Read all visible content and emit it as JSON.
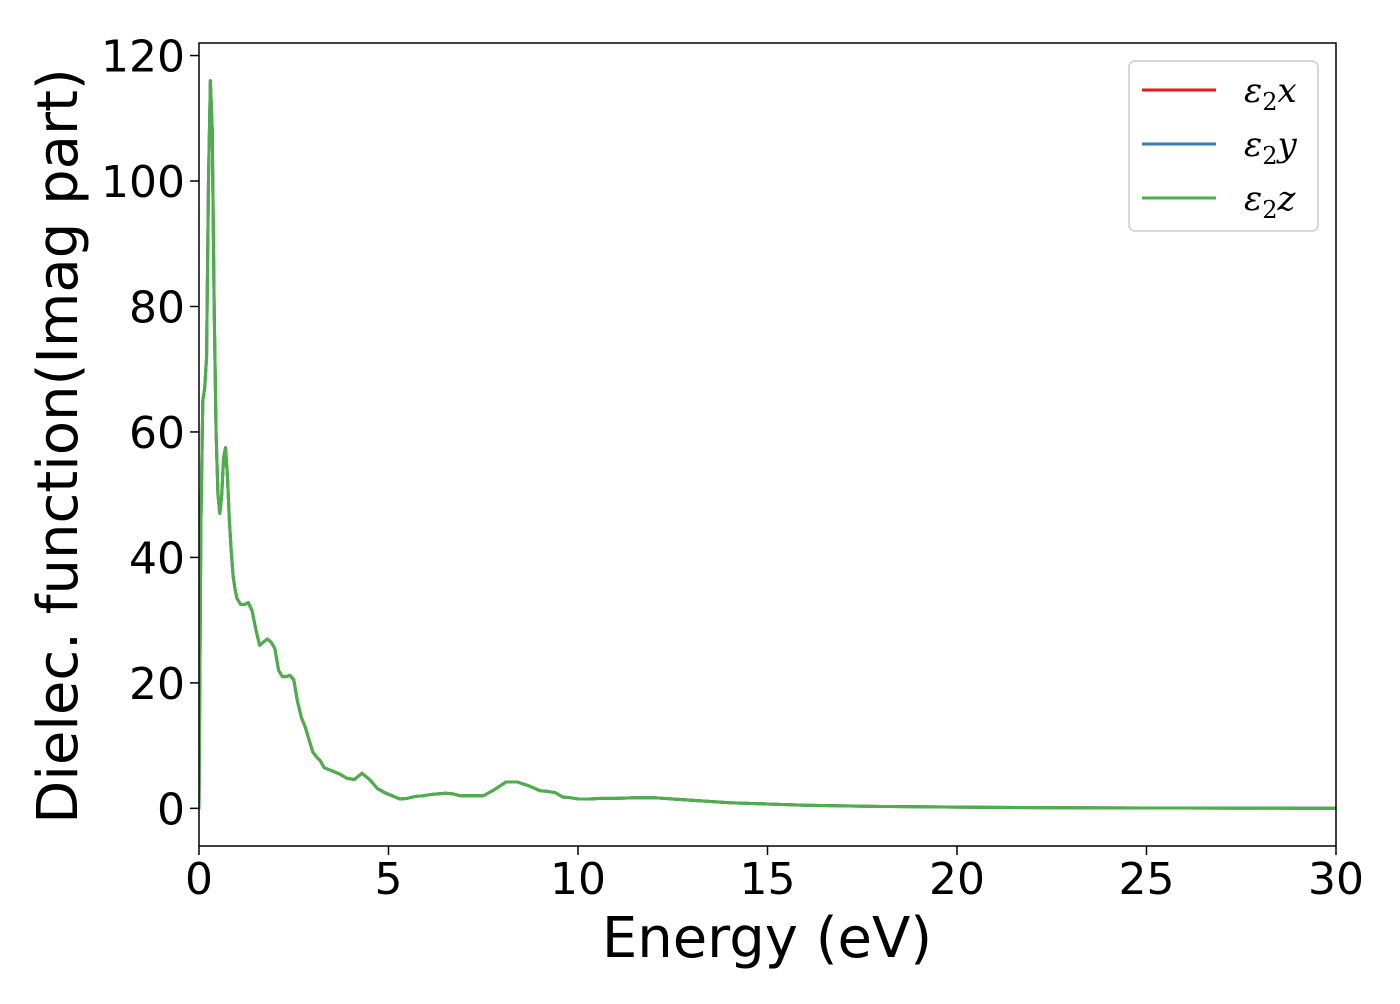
{
  "chart_data": {
    "type": "line",
    "title": "",
    "xlabel": "Energy (eV)",
    "ylabel": "Dielec. function(Imag part)",
    "xlim": [
      0,
      30
    ],
    "ylim": [
      -6,
      122
    ],
    "x_ticks": [
      0,
      5,
      10,
      15,
      20,
      25,
      30
    ],
    "y_ticks": [
      0,
      20,
      40,
      60,
      80,
      100,
      120
    ],
    "x_tick_labels": [
      "0",
      "5",
      "10",
      "15",
      "20",
      "25",
      "30"
    ],
    "y_tick_labels": [
      "0",
      "20",
      "40",
      "60",
      "80",
      "100",
      "120"
    ],
    "grid": false,
    "legend_position": "top-right",
    "series": [
      {
        "name": "ε2x",
        "name_base": "ε",
        "name_sub": "2",
        "name_tail": "x",
        "color": "#e41a1c",
        "x": [
          0,
          0.05,
          0.1,
          0.15,
          0.2,
          0.25,
          0.3,
          0.35,
          0.4,
          0.45,
          0.5,
          0.55,
          0.6,
          0.65,
          0.7,
          0.75,
          0.8,
          0.85,
          0.9,
          0.95,
          1.0,
          1.05,
          1.1,
          1.2,
          1.3,
          1.4,
          1.5,
          1.6,
          1.7,
          1.8,
          1.9,
          2.0,
          2.1,
          2.2,
          2.3,
          2.4,
          2.5,
          2.6,
          2.7,
          2.8,
          2.9,
          3.0,
          3.1,
          3.2,
          3.3,
          3.5,
          3.7,
          3.9,
          4.1,
          4.3,
          4.5,
          4.7,
          4.9,
          5.1,
          5.3,
          5.5,
          5.7,
          5.9,
          6.1,
          6.3,
          6.5,
          6.7,
          6.9,
          7.2,
          7.5,
          7.8,
          8.1,
          8.4,
          8.7,
          9.0,
          9.2,
          9.4,
          9.6,
          9.8,
          10.0,
          10.3,
          10.6,
          11.0,
          11.5,
          12.0,
          12.5,
          13.0,
          13.5,
          14.0,
          15.0,
          16.0,
          17.0,
          18.0,
          19.0,
          20.0,
          21.0,
          22.0,
          23.0,
          24.0,
          25.0,
          26.0,
          27.0,
          28.0,
          29.0,
          30.0
        ],
        "values": [
          0,
          45,
          65,
          67,
          72,
          100,
          116,
          108,
          80,
          60,
          50,
          47,
          50,
          56,
          57.5,
          53,
          46,
          41,
          37,
          35,
          33.5,
          33,
          32.5,
          32.5,
          32.8,
          31.5,
          28.5,
          26,
          26.5,
          27,
          26.5,
          25.5,
          22,
          21,
          21,
          21.2,
          20.5,
          17,
          14.5,
          13,
          11,
          9,
          8.2,
          7.6,
          6.5,
          6.0,
          5.5,
          4.8,
          4.6,
          5.6,
          4.6,
          3.2,
          2.5,
          2.0,
          1.5,
          1.6,
          1.9,
          2.0,
          2.2,
          2.3,
          2.4,
          2.3,
          2.0,
          2.0,
          2.0,
          3.0,
          4.2,
          4.2,
          3.6,
          2.8,
          2.7,
          2.5,
          1.8,
          1.7,
          1.5,
          1.5,
          1.6,
          1.6,
          1.7,
          1.7,
          1.5,
          1.3,
          1.1,
          0.9,
          0.7,
          0.5,
          0.4,
          0.3,
          0.25,
          0.2,
          0.15,
          0.12,
          0.1,
          0.08,
          0.06,
          0.05,
          0.04,
          0.03,
          0.02,
          0.01
        ]
      },
      {
        "name": "ε2y",
        "name_base": "ε",
        "name_sub": "2",
        "name_tail": "y",
        "color": "#377eb8",
        "x": [
          0,
          0.05,
          0.1,
          0.15,
          0.2,
          0.25,
          0.3,
          0.35,
          0.4,
          0.45,
          0.5,
          0.55,
          0.6,
          0.65,
          0.7,
          0.75,
          0.8,
          0.85,
          0.9,
          0.95,
          1.0,
          1.05,
          1.1,
          1.2,
          1.3,
          1.4,
          1.5,
          1.6,
          1.7,
          1.8,
          1.9,
          2.0,
          2.1,
          2.2,
          2.3,
          2.4,
          2.5,
          2.6,
          2.7,
          2.8,
          2.9,
          3.0,
          3.1,
          3.2,
          3.3,
          3.5,
          3.7,
          3.9,
          4.1,
          4.3,
          4.5,
          4.7,
          4.9,
          5.1,
          5.3,
          5.5,
          5.7,
          5.9,
          6.1,
          6.3,
          6.5,
          6.7,
          6.9,
          7.2,
          7.5,
          7.8,
          8.1,
          8.4,
          8.7,
          9.0,
          9.2,
          9.4,
          9.6,
          9.8,
          10.0,
          10.3,
          10.6,
          11.0,
          11.5,
          12.0,
          12.5,
          13.0,
          13.5,
          14.0,
          15.0,
          16.0,
          17.0,
          18.0,
          19.0,
          20.0,
          21.0,
          22.0,
          23.0,
          24.0,
          25.0,
          26.0,
          27.0,
          28.0,
          29.0,
          30.0
        ],
        "values": [
          0,
          45,
          65,
          67,
          72,
          100,
          116,
          108,
          80,
          60,
          50,
          47,
          50,
          56,
          57.5,
          53,
          46,
          41,
          37,
          35,
          33.5,
          33,
          32.5,
          32.5,
          32.8,
          31.5,
          28.5,
          26,
          26.5,
          27,
          26.5,
          25.5,
          22,
          21,
          21,
          21.2,
          20.5,
          17,
          14.5,
          13,
          11,
          9,
          8.2,
          7.6,
          6.5,
          6.0,
          5.5,
          4.8,
          4.6,
          5.6,
          4.6,
          3.2,
          2.5,
          2.0,
          1.5,
          1.6,
          1.9,
          2.0,
          2.2,
          2.3,
          2.4,
          2.3,
          2.0,
          2.0,
          2.0,
          3.0,
          4.2,
          4.2,
          3.6,
          2.8,
          2.7,
          2.5,
          1.8,
          1.7,
          1.5,
          1.5,
          1.6,
          1.6,
          1.7,
          1.7,
          1.5,
          1.3,
          1.1,
          0.9,
          0.7,
          0.5,
          0.4,
          0.3,
          0.25,
          0.2,
          0.15,
          0.12,
          0.1,
          0.08,
          0.06,
          0.05,
          0.04,
          0.03,
          0.02,
          0.01
        ]
      },
      {
        "name": "ε2z",
        "name_base": "ε",
        "name_sub": "2",
        "name_tail": "z",
        "color": "#4daf4a",
        "x": [
          0,
          0.05,
          0.1,
          0.15,
          0.2,
          0.25,
          0.3,
          0.35,
          0.4,
          0.45,
          0.5,
          0.55,
          0.6,
          0.65,
          0.7,
          0.75,
          0.8,
          0.85,
          0.9,
          0.95,
          1.0,
          1.05,
          1.1,
          1.2,
          1.3,
          1.4,
          1.5,
          1.6,
          1.7,
          1.8,
          1.9,
          2.0,
          2.1,
          2.2,
          2.3,
          2.4,
          2.5,
          2.6,
          2.7,
          2.8,
          2.9,
          3.0,
          3.1,
          3.2,
          3.3,
          3.5,
          3.7,
          3.9,
          4.1,
          4.3,
          4.5,
          4.7,
          4.9,
          5.1,
          5.3,
          5.5,
          5.7,
          5.9,
          6.1,
          6.3,
          6.5,
          6.7,
          6.9,
          7.2,
          7.5,
          7.8,
          8.1,
          8.4,
          8.7,
          9.0,
          9.2,
          9.4,
          9.6,
          9.8,
          10.0,
          10.3,
          10.6,
          11.0,
          11.5,
          12.0,
          12.5,
          13.0,
          13.5,
          14.0,
          15.0,
          16.0,
          17.0,
          18.0,
          19.0,
          20.0,
          21.0,
          22.0,
          23.0,
          24.0,
          25.0,
          26.0,
          27.0,
          28.0,
          29.0,
          30.0
        ],
        "values": [
          0,
          45,
          65,
          67,
          72,
          100,
          116,
          108,
          80,
          60,
          50,
          47,
          50,
          56,
          57.5,
          53,
          46,
          41,
          37,
          35,
          33.5,
          33,
          32.5,
          32.5,
          32.8,
          31.5,
          28.5,
          26,
          26.5,
          27,
          26.5,
          25.5,
          22,
          21,
          21,
          21.2,
          20.5,
          17,
          14.5,
          13,
          11,
          9,
          8.2,
          7.6,
          6.5,
          6.0,
          5.5,
          4.8,
          4.6,
          5.6,
          4.6,
          3.2,
          2.5,
          2.0,
          1.5,
          1.6,
          1.9,
          2.0,
          2.2,
          2.3,
          2.4,
          2.3,
          2.0,
          2.0,
          2.0,
          3.0,
          4.2,
          4.2,
          3.6,
          2.8,
          2.7,
          2.5,
          1.8,
          1.7,
          1.5,
          1.5,
          1.6,
          1.6,
          1.7,
          1.7,
          1.5,
          1.3,
          1.1,
          0.9,
          0.7,
          0.5,
          0.4,
          0.3,
          0.25,
          0.2,
          0.15,
          0.12,
          0.1,
          0.08,
          0.06,
          0.05,
          0.04,
          0.03,
          0.02,
          0.01
        ]
      }
    ]
  }
}
